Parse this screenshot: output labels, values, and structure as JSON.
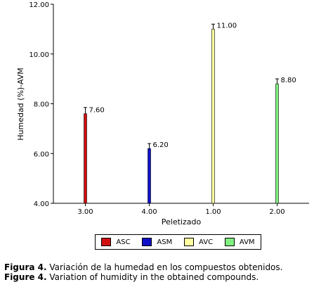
{
  "chart_data": {
    "type": "bar",
    "categories": [
      "3.00",
      "4.00",
      "1.00",
      "2.00"
    ],
    "series": [
      {
        "name": "ASC",
        "category": "3.00",
        "value": 7.6,
        "error": 0.25,
        "color": "#d01010"
      },
      {
        "name": "ASM",
        "category": "4.00",
        "value": 6.2,
        "error": 0.2,
        "color": "#1010c8"
      },
      {
        "name": "AVC",
        "category": "1.00",
        "value": 11.0,
        "error": 0.2,
        "color": "#ffffa0"
      },
      {
        "name": "AVM",
        "category": "2.00",
        "value": 8.8,
        "error": 0.2,
        "color": "#80f080"
      }
    ],
    "data_labels": [
      "7.60",
      "6.20",
      "11.00",
      "8.80"
    ],
    "ylim": [
      4.0,
      12.0
    ],
    "yticks": [
      "4.00",
      "6.00",
      "8.00",
      "10.00",
      "12.00"
    ],
    "ytick_values": [
      4,
      6,
      8,
      10,
      12
    ],
    "xlabel": "Peletizado",
    "ylabel": "Humedad (%)-AVM",
    "grid": false,
    "legend_placement": "bottom-center"
  },
  "legend": [
    {
      "label": "ASC",
      "color": "#d01010"
    },
    {
      "label": "ASM",
      "color": "#1010c8"
    },
    {
      "label": "AVC",
      "color": "#ffffa0"
    },
    {
      "label": "AVM",
      "color": "#80f080"
    }
  ],
  "caption": {
    "es_prefix": "Figura 4.",
    "es_text": " Variación de la humedad en los compuestos obtenidos.",
    "en_prefix": "Figure 4.",
    "en_text": " Variation of humidity in the obtained compounds."
  }
}
